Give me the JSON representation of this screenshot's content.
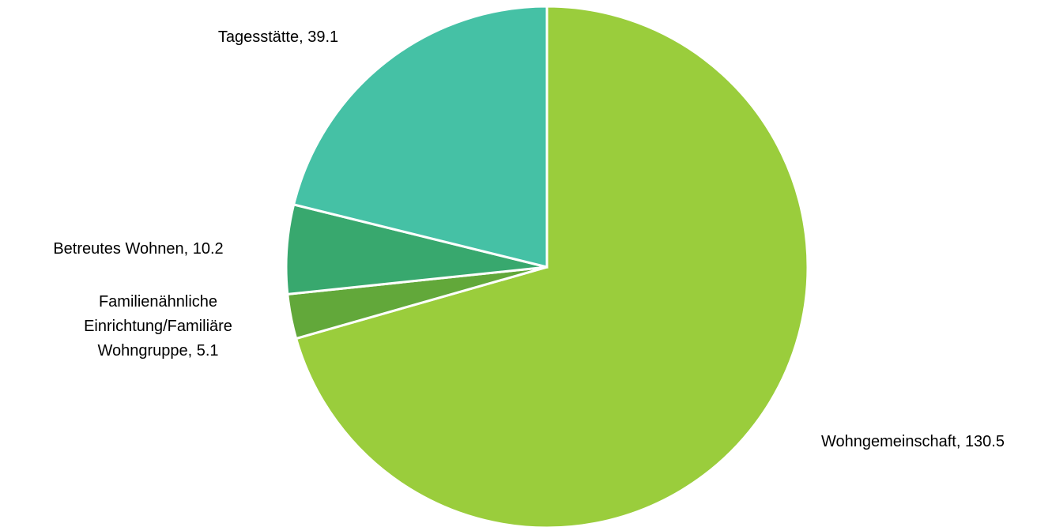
{
  "chart_data": {
    "type": "pie",
    "values": [
      130.5,
      5.1,
      10.2,
      39.1
    ],
    "value_labels": [
      [
        "Wohngemeinschaft, 130.5"
      ],
      [
        "Familienähnliche",
        "Einrichtung/Familiäre",
        "Wohngruppe, 5.1"
      ],
      [
        "Betreutes Wohnen, 10.2"
      ],
      [
        "Tagesstätte, 39.1"
      ]
    ],
    "colors": [
      "#9acd3c",
      "#62a83a",
      "#38a86e",
      "#45c1a5"
    ]
  }
}
